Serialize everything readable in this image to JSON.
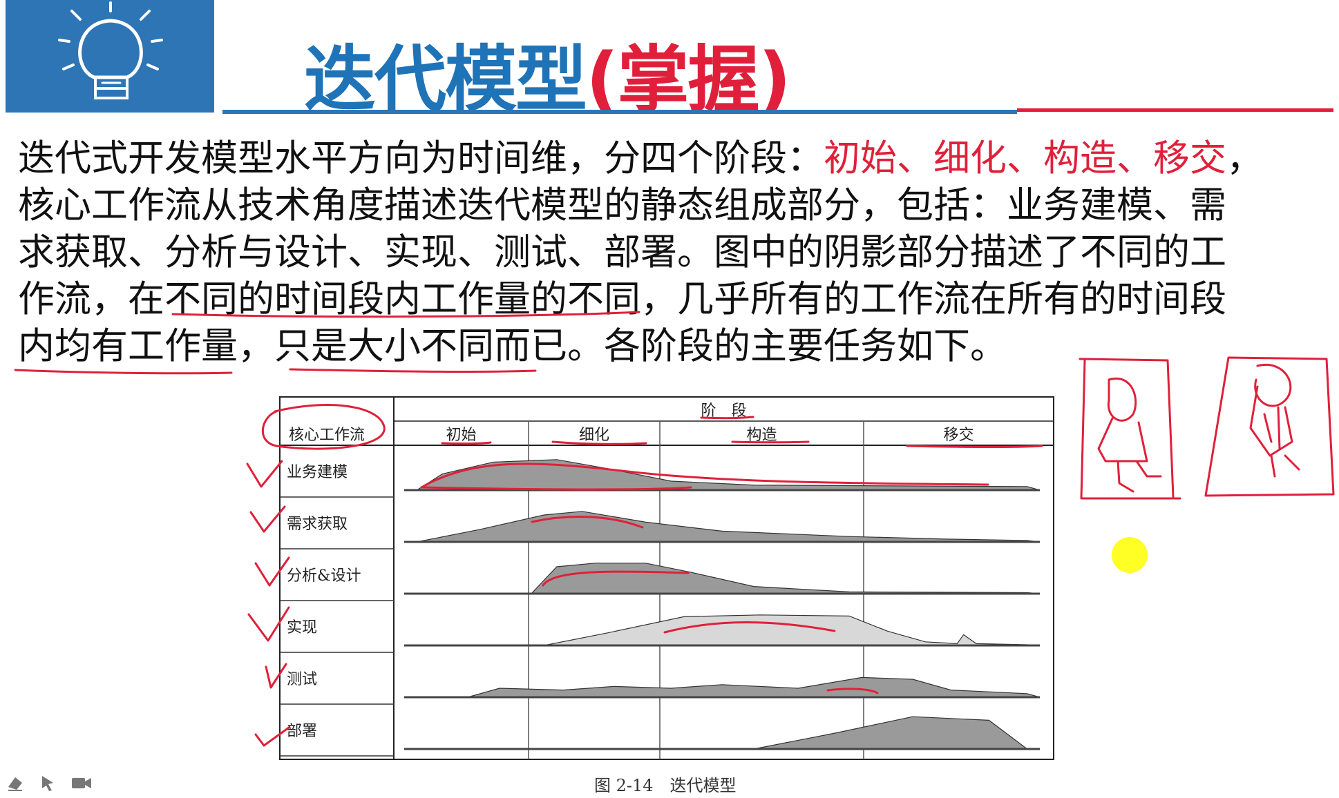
{
  "title": {
    "main": "迭代模型",
    "sub": "(掌握)"
  },
  "paragraph": [
    [
      {
        "t": "迭代式开发模型水平方向为时间维，分四个阶段："
      },
      {
        "t": "初始、细化、构造、移交",
        "red": true
      },
      {
        "t": "，"
      }
    ],
    [
      {
        "t": "核心工作流从技术角度描述迭代模型的静态组成部分，包括：业务建模、需"
      }
    ],
    [
      {
        "t": "求获取、分析与设计、实现、测试、部署。图中的阴影部分描述了不同的工"
      }
    ],
    [
      {
        "t": "作流，在不同的时间段内工作量的不同，几乎所有的工作流在所有的时间段"
      }
    ],
    [
      {
        "t": "内均有工作量，只是大小不同而已。各阶段的主要任务如下。"
      }
    ]
  ],
  "figure": {
    "header_phase": "阶　段",
    "header_core": "核心工作流",
    "phases": [
      "初始",
      "细化",
      "构造",
      "移交"
    ],
    "workflows": [
      "业务建模",
      "需求获取",
      "分析&设计",
      "实现",
      "测试",
      "部署"
    ],
    "caption": "图 2-14　迭代模型"
  },
  "colors": {
    "accent_blue": "#1f73b7",
    "accent_red": "#e0203a",
    "logo_bg": "#2e75b6",
    "hump_fill": "#9a9a9a"
  },
  "icons": {
    "logo": "lightbulb-icon",
    "tools": [
      "eraser-icon",
      "pointer-icon",
      "camera-icon"
    ]
  }
}
